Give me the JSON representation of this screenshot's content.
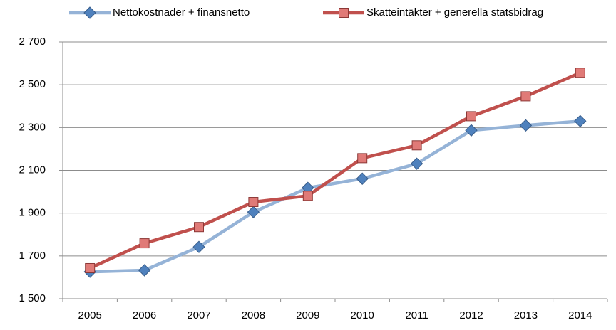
{
  "chart_data": {
    "type": "line",
    "categories": [
      "2005",
      "2006",
      "2007",
      "2008",
      "2009",
      "2010",
      "2011",
      "2012",
      "2013",
      "2014"
    ],
    "series": [
      {
        "name": "Nettokostnader + finansnetto",
        "color": "#95b3d7",
        "marker": "diamond",
        "marker_color": "#4f81bd",
        "values": [
          1626,
          1633,
          1742,
          1905,
          2018,
          2061,
          2131,
          2287,
          2310,
          2330
        ]
      },
      {
        "name": "Skatteintäkter + generella statsbidrag",
        "color": "#c0504d",
        "marker": "square",
        "marker_color": "#e07a77",
        "values": [
          1643,
          1759,
          1835,
          1952,
          1981,
          2157,
          2217,
          2353,
          2446,
          2556
        ]
      }
    ],
    "ylim": [
      1500,
      2700
    ],
    "yticks": [
      {
        "value": 1500,
        "label": "1 500"
      },
      {
        "value": 1700,
        "label": "1 700"
      },
      {
        "value": 1900,
        "label": "1 900"
      },
      {
        "value": 2100,
        "label": "2 100"
      },
      {
        "value": 2300,
        "label": "2 300"
      },
      {
        "value": 2500,
        "label": "2 500"
      },
      {
        "value": 2700,
        "label": "2 700"
      }
    ],
    "grid": true,
    "legend": "top"
  }
}
